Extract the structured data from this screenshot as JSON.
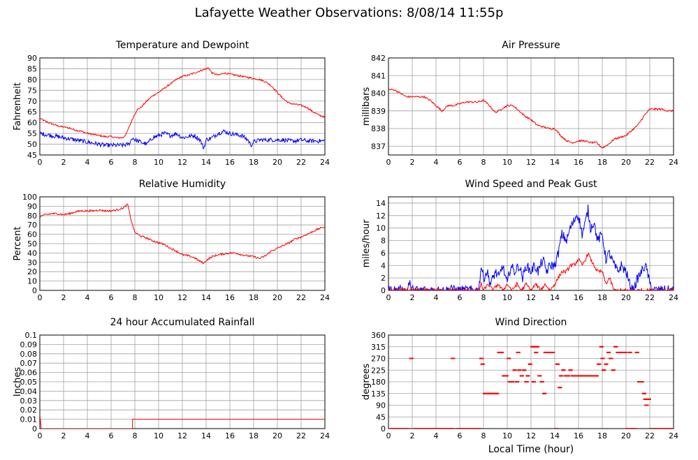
{
  "title": "Lafayette Weather Observations: 8/08/14 11:55p",
  "xlabel": "Local Time (hour)",
  "colors": {
    "red": "#ff0000",
    "blue": "#0000ff",
    "grid": "#a0a0a0"
  },
  "chart_data": [
    {
      "type": "line",
      "title": "Temperature and Dewpoint",
      "ylabel": "Fahrenheit",
      "xlim": [
        0,
        24
      ],
      "xticks": [
        0,
        2,
        4,
        6,
        8,
        10,
        12,
        14,
        16,
        18,
        20,
        22,
        24
      ],
      "ylim": [
        45,
        90
      ],
      "yticks": [
        45,
        50,
        55,
        60,
        65,
        70,
        75,
        80,
        85,
        90
      ],
      "grid": true,
      "series": [
        {
          "color": "#ff0000",
          "x": [
            0,
            0.5,
            1,
            1.5,
            2,
            2.5,
            3,
            3.5,
            4,
            4.5,
            5,
            5.5,
            6,
            6.5,
            7,
            7.3,
            7.6,
            7.9,
            8.2,
            8.5,
            9,
            9.5,
            10,
            10.5,
            11,
            11.5,
            12,
            12.5,
            13,
            13.5,
            14,
            14.2,
            14.5,
            15,
            15.5,
            16,
            16.5,
            17,
            17.5,
            18,
            18.5,
            19,
            19.5,
            20,
            20.5,
            21,
            21.5,
            22,
            22.5,
            23,
            23.5,
            24
          ],
          "y": [
            62,
            60.5,
            59.5,
            58.5,
            58,
            57.5,
            56.5,
            56,
            55,
            54.5,
            54,
            53.5,
            53.5,
            53,
            53,
            55,
            59,
            63,
            66,
            67,
            70,
            72.5,
            74,
            76,
            78,
            80,
            81.5,
            82,
            83,
            84,
            85,
            85.5,
            83,
            82,
            83,
            82.5,
            82,
            81.5,
            81,
            80.5,
            80,
            79,
            77,
            74,
            71,
            69,
            68.5,
            68,
            67,
            65,
            63.5,
            62.5
          ],
          "noise": 0.4
        },
        {
          "color": "#0000ff",
          "x": [
            0,
            0.5,
            1,
            1.5,
            2,
            2.5,
            3,
            3.5,
            4,
            4.5,
            5,
            5.5,
            6,
            6.5,
            7,
            7.5,
            7.8,
            8,
            8.5,
            9,
            9.5,
            10,
            10.5,
            11,
            11.5,
            12,
            12.5,
            13,
            13.5,
            13.8,
            14,
            14.5,
            15,
            15.5,
            16,
            16.5,
            17,
            17.5,
            17.8,
            18,
            18.5,
            19,
            19.5,
            20,
            20.5,
            21,
            21.5,
            22,
            22.5,
            23,
            23.5,
            24
          ],
          "y": [
            55,
            54.5,
            54,
            53.5,
            53,
            52.5,
            52,
            51.5,
            51,
            50.5,
            50,
            49.5,
            49.5,
            49.5,
            49.5,
            50,
            53,
            52,
            51,
            50,
            53,
            54,
            55,
            54,
            55,
            53,
            53.5,
            54,
            52,
            48,
            52,
            53,
            55,
            56,
            55,
            54.5,
            54,
            52,
            49.5,
            51,
            52,
            52,
            52,
            52,
            52,
            51.5,
            51.5,
            52,
            51.5,
            51.5,
            51.5,
            51.5
          ],
          "noise": 1.0
        }
      ]
    },
    {
      "type": "line",
      "title": "Air Pressure",
      "ylabel": "millibars",
      "xlim": [
        0,
        24
      ],
      "xticks": [
        0,
        2,
        4,
        6,
        8,
        10,
        12,
        14,
        16,
        18,
        20,
        22,
        24
      ],
      "ylim": [
        836.5,
        842
      ],
      "yticks": [
        837,
        838,
        839,
        840,
        841,
        842
      ],
      "grid": true,
      "series": [
        {
          "color": "#ff0000",
          "x": [
            0,
            0.5,
            1,
            1.5,
            2,
            2.5,
            3,
            3.5,
            4,
            4.5,
            5,
            5.5,
            6,
            6.5,
            7,
            7.5,
            8,
            8.5,
            9,
            9.5,
            10,
            10.5,
            11,
            11.5,
            12,
            12.5,
            13,
            13.5,
            14,
            14.5,
            15,
            15.5,
            16,
            16.5,
            17,
            17.5,
            18,
            18.5,
            19,
            19.5,
            20,
            20.5,
            21,
            21.5,
            22,
            22.5,
            23,
            23.5,
            24
          ],
          "y": [
            840.2,
            840.2,
            840,
            839.8,
            839.8,
            839.8,
            839.8,
            839.6,
            839.3,
            839,
            839.3,
            839.3,
            839.4,
            839.5,
            839.5,
            839.5,
            839.6,
            839.3,
            838.9,
            839.1,
            839.3,
            839.3,
            839,
            838.7,
            838.5,
            838.2,
            838.1,
            838,
            838,
            837.6,
            837.3,
            837.2,
            837.3,
            837.3,
            837.2,
            837.2,
            836.9,
            837.1,
            837.4,
            837.5,
            837.6,
            837.9,
            838.2,
            838.7,
            839.1,
            839.1,
            839.1,
            839,
            839
          ],
          "noise": 0.05
        }
      ]
    },
    {
      "type": "line",
      "title": "Relative Humidity",
      "ylabel": "Percent",
      "xlim": [
        0,
        24
      ],
      "xticks": [
        0,
        2,
        4,
        6,
        8,
        10,
        12,
        14,
        16,
        18,
        20,
        22,
        24
      ],
      "ylim": [
        0,
        100
      ],
      "yticks": [
        0,
        10,
        20,
        30,
        40,
        50,
        60,
        70,
        80,
        90,
        100
      ],
      "grid": true,
      "series": [
        {
          "color": "#ff0000",
          "x": [
            0,
            0.5,
            1,
            1.5,
            2,
            2.5,
            3,
            3.5,
            4,
            4.5,
            5,
            5.5,
            6,
            6.5,
            7,
            7.4,
            7.6,
            7.8,
            8,
            8.5,
            9,
            9.5,
            10,
            10.5,
            11,
            11.5,
            12,
            12.5,
            13,
            13.5,
            13.8,
            14,
            14.5,
            15,
            15.5,
            16,
            16.5,
            17,
            17.5,
            18,
            18.5,
            19,
            19.5,
            20,
            20.5,
            21,
            21.5,
            22,
            22.5,
            23,
            23.5,
            24
          ],
          "y": [
            79,
            81,
            82,
            82,
            81,
            82,
            84,
            85,
            85,
            85,
            86,
            85,
            85,
            86,
            88,
            92,
            80,
            70,
            62,
            58,
            56,
            53,
            51,
            49,
            45,
            42,
            38,
            37,
            35,
            31,
            29,
            32,
            36,
            38,
            39,
            40,
            40,
            38,
            37,
            36,
            34,
            37,
            42,
            45,
            48,
            51,
            55,
            57,
            60,
            63,
            66,
            68
          ],
          "noise": 1.0
        }
      ]
    },
    {
      "type": "line",
      "title": "Wind Speed and Peak Gust",
      "ylabel": "miles/hour",
      "xlim": [
        0,
        24
      ],
      "xticks": [
        0,
        2,
        4,
        6,
        8,
        10,
        12,
        14,
        16,
        18,
        20,
        22,
        24
      ],
      "ylim": [
        0,
        15
      ],
      "yticks": [
        0,
        2,
        4,
        6,
        8,
        10,
        12,
        14
      ],
      "grid": true,
      "series": [
        {
          "color": "#0000ff",
          "x": [
            0,
            1.6,
            1.7,
            1.8,
            1.9,
            5.2,
            5.3,
            5.4,
            7.6,
            7.8,
            8,
            8.3,
            8.6,
            9,
            9.3,
            9.6,
            10,
            10.3,
            10.6,
            11,
            11.3,
            11.6,
            12,
            12.3,
            12.6,
            13,
            13.3,
            13.6,
            14,
            14.3,
            14.6,
            15,
            15.3,
            15.6,
            15.8,
            16,
            16.3,
            16.6,
            16.8,
            17,
            17.3,
            17.6,
            18,
            18.3,
            18.6,
            19,
            19.3,
            19.6,
            20,
            20.3,
            20.6,
            21,
            21.3,
            21.6,
            21.8,
            22,
            22.3,
            24
          ],
          "y": [
            0,
            0,
            1,
            1,
            0,
            0,
            1,
            0,
            0,
            4,
            2,
            3,
            1,
            3,
            2,
            4,
            1,
            4,
            3,
            4,
            2,
            4,
            3,
            4,
            3,
            5,
            3,
            4,
            4,
            6,
            9,
            8,
            10,
            11,
            12,
            12,
            9,
            11,
            13,
            10,
            11,
            8,
            9,
            5,
            6,
            4,
            3,
            4,
            3,
            1,
            0,
            2,
            3,
            4,
            3,
            1,
            0,
            0
          ],
          "noise": 0.8
        },
        {
          "color": "#ff0000",
          "x": [
            0,
            7.6,
            7.8,
            8,
            8.4,
            8.8,
            9.2,
            9.6,
            10,
            10.4,
            10.8,
            11.2,
            11.6,
            12,
            12.4,
            12.8,
            13.2,
            13.6,
            14,
            14.3,
            14.6,
            15,
            15.3,
            15.6,
            16,
            16.3,
            16.6,
            16.8,
            17,
            17.3,
            17.6,
            18,
            18.3,
            18.6,
            19,
            24
          ],
          "y": [
            0,
            0,
            1,
            0,
            1,
            0,
            1,
            0,
            1,
            0,
            1,
            0,
            1,
            0,
            1,
            0,
            1,
            0,
            1,
            2,
            3,
            3,
            4,
            4,
            5,
            4,
            5,
            6,
            5,
            4,
            3,
            3,
            1,
            2,
            0,
            0
          ],
          "noise": 0.3
        }
      ]
    },
    {
      "type": "line",
      "title": "24 hour Accumulated Rainfall",
      "ylabel": "Inches",
      "xlim": [
        0,
        24
      ],
      "xticks": [
        0,
        2,
        4,
        6,
        8,
        10,
        12,
        14,
        16,
        18,
        20,
        22,
        24
      ],
      "ylim": [
        0,
        0.1
      ],
      "yticks": [
        0.0,
        0.01,
        0.02,
        0.03,
        0.04,
        0.05,
        0.06,
        0.07,
        0.08,
        0.09,
        0.1
      ],
      "grid": true,
      "series": [
        {
          "color": "#ff0000",
          "x": [
            0,
            0.08,
            0.12,
            7.8,
            7.8,
            24
          ],
          "y": [
            0.015,
            0.005,
            0,
            0,
            0.01,
            0.01
          ],
          "noise": 0
        }
      ]
    },
    {
      "type": "scatter",
      "title": "Wind Direction",
      "ylabel": "degrees",
      "xlim": [
        0,
        24
      ],
      "xticks": [
        0,
        2,
        4,
        6,
        8,
        10,
        12,
        14,
        16,
        18,
        20,
        22,
        24
      ],
      "ylim": [
        0,
        360
      ],
      "yticks": [
        0,
        45,
        90,
        135,
        180,
        225,
        270,
        315,
        360
      ],
      "grid": true,
      "series": [
        {
          "color": "#ff0000",
          "x": [
            0.2,
            0.8,
            1.4,
            1.8,
            2.2,
            2.8,
            3.4,
            4,
            4.6,
            5.2,
            5.3,
            5.8,
            6.4,
            7,
            7.5,
            7.7,
            7.8,
            8,
            8.2,
            8.4,
            8.6,
            8.8,
            9,
            9.2,
            9.4,
            9.6,
            9.8,
            10,
            10.1,
            10.3,
            10.5,
            10.7,
            10.8,
            10.9,
            11.1,
            11.3,
            11.5,
            11.6,
            11.8,
            12,
            12.1,
            12.2,
            12.3,
            12.4,
            12.6,
            12.8,
            13,
            13.1,
            13.3,
            13.5,
            13.7,
            14,
            14.1,
            14.3,
            14.4,
            14.6,
            14.8,
            15,
            15.2,
            15.4,
            15.6,
            15.8,
            16,
            16.2,
            16.4,
            16.6,
            16.8,
            17,
            17.2,
            17.4,
            17.6,
            17.8,
            17.9,
            18,
            18.2,
            18.4,
            18.6,
            18.8,
            19,
            19.2,
            19.4,
            19.6,
            19.8,
            20,
            20.2,
            20.4,
            20.6,
            20.8,
            21,
            21.2,
            21.4,
            21.5,
            21.6,
            21.8,
            22,
            22.2,
            22.6,
            23,
            23.4,
            23.8
          ],
          "y": [
            0,
            0,
            0,
            270,
            0,
            0,
            0,
            0,
            0,
            0,
            270,
            0,
            0,
            0,
            0,
            270,
            248,
            135,
            135,
            135,
            135,
            135,
            135,
            293,
            293,
            203,
            203,
            270,
            180,
            180,
            225,
            180,
            293,
            225,
            203,
            225,
            180,
            203,
            248,
            315,
            180,
            315,
            293,
            315,
            203,
            180,
            135,
            293,
            293,
            293,
            293,
            0,
            248,
            158,
            203,
            225,
            203,
            203,
            225,
            203,
            203,
            203,
            203,
            203,
            203,
            203,
            203,
            203,
            203,
            203,
            248,
            315,
            270,
            225,
            248,
            293,
            270,
            225,
            315,
            293,
            293,
            293,
            293,
            0,
            293,
            0,
            0,
            293,
            180,
            180,
            135,
            113,
            90,
            113,
            0,
            0,
            0,
            0,
            0,
            0
          ],
          "noise": 0
        }
      ]
    }
  ]
}
